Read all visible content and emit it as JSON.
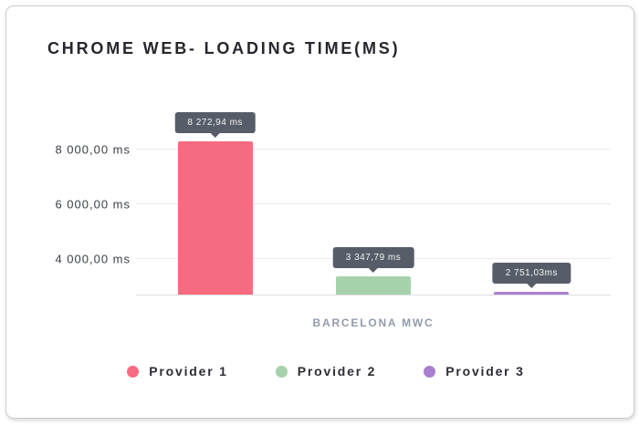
{
  "header": {
    "title": "CHROME WEB- LOADING TIME(MS)"
  },
  "chart_data": {
    "type": "bar",
    "title": "CHROME WEB- LOADING TIME(MS)",
    "categories": [
      "BARCELONA MWC"
    ],
    "series": [
      {
        "name": "Provider 1",
        "value": 8272.94,
        "value_label": "8 272,94 ms",
        "color": "#f76b80"
      },
      {
        "name": "Provider 2",
        "value": 3347.79,
        "value_label": "3 347,79 ms",
        "color": "#a5d2ab"
      },
      {
        "name": "Provider 3",
        "value": 2751.03,
        "value_label": "2 751,03ms",
        "color": "#a97fd0"
      }
    ],
    "yticks": [
      {
        "value": 8000,
        "label": "8 000,00 ms"
      },
      {
        "value": 6000,
        "label": "6 000,00 ms"
      },
      {
        "value": 4000,
        "label": "4 000,00 ms"
      }
    ],
    "y_unit": "ms",
    "ylim_visible": [
      2666,
      8550
    ],
    "grid": true,
    "legend_position": "bottom",
    "tooltip_bg": "#575d68",
    "gridline_color": "#e9e9ec"
  }
}
